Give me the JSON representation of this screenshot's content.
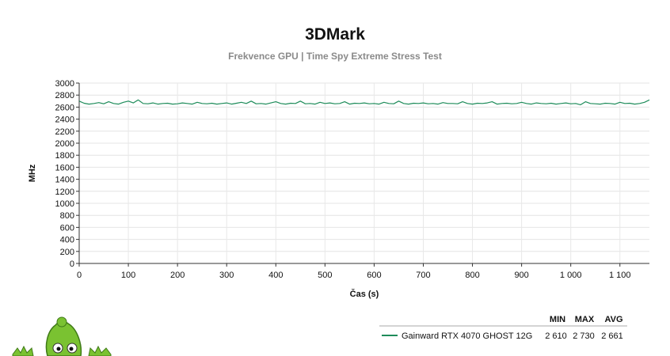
{
  "chart_data": {
    "type": "line",
    "title": "3DMark",
    "subtitle": "Frekvence GPU | Time Spy Extreme Stress Test",
    "xlabel": "Čas (s)",
    "ylabel": "MHz",
    "xlim": [
      0,
      1160
    ],
    "ylim": [
      0,
      3000
    ],
    "x_ticks": [
      0,
      100,
      200,
      300,
      400,
      500,
      600,
      700,
      800,
      900,
      1000,
      1100
    ],
    "x_tick_labels": [
      "0",
      "100",
      "200",
      "300",
      "400",
      "500",
      "600",
      "700",
      "800",
      "900",
      "1 000",
      "1 100"
    ],
    "y_ticks": [
      0,
      200,
      400,
      600,
      800,
      1000,
      1200,
      1400,
      1600,
      1800,
      2000,
      2200,
      2400,
      2600,
      2800,
      3000
    ],
    "grid": true,
    "legend": {
      "columns": [
        "MIN",
        "MAX",
        "AVG"
      ],
      "placement": "bottom-right"
    },
    "series": [
      {
        "name": "Gainward RTX 4070 GHOST 12G",
        "color": "#1e8c5a",
        "min": "2 610",
        "max": "2 730",
        "avg": "2 661",
        "x": [
          0,
          10,
          20,
          30,
          40,
          50,
          60,
          70,
          80,
          90,
          100,
          110,
          120,
          130,
          140,
          150,
          160,
          170,
          180,
          190,
          200,
          210,
          220,
          230,
          240,
          250,
          260,
          270,
          280,
          290,
          300,
          310,
          320,
          330,
          340,
          350,
          360,
          370,
          380,
          390,
          400,
          410,
          420,
          430,
          440,
          450,
          460,
          470,
          480,
          490,
          500,
          510,
          520,
          530,
          540,
          550,
          560,
          570,
          580,
          590,
          600,
          610,
          620,
          630,
          640,
          650,
          660,
          670,
          680,
          690,
          700,
          710,
          720,
          730,
          740,
          750,
          760,
          770,
          780,
          790,
          800,
          810,
          820,
          830,
          840,
          850,
          860,
          870,
          880,
          890,
          900,
          910,
          920,
          930,
          940,
          950,
          960,
          970,
          980,
          990,
          1000,
          1010,
          1020,
          1030,
          1040,
          1050,
          1060,
          1070,
          1080,
          1090,
          1100,
          1110,
          1120,
          1130,
          1140,
          1150,
          1160
        ],
        "values": [
          2700,
          2665,
          2650,
          2660,
          2675,
          2655,
          2690,
          2660,
          2650,
          2680,
          2700,
          2670,
          2720,
          2660,
          2655,
          2670,
          2650,
          2660,
          2665,
          2650,
          2655,
          2670,
          2660,
          2650,
          2680,
          2660,
          2655,
          2665,
          2650,
          2660,
          2670,
          2650,
          2665,
          2680,
          2660,
          2700,
          2655,
          2660,
          2650,
          2670,
          2690,
          2660,
          2650,
          2665,
          2660,
          2700,
          2655,
          2660,
          2650,
          2680,
          2660,
          2670,
          2655,
          2660,
          2690,
          2650,
          2665,
          2660,
          2670,
          2655,
          2660,
          2650,
          2680,
          2660,
          2655,
          2700,
          2660,
          2650,
          2665,
          2660,
          2670,
          2655,
          2660,
          2650,
          2675,
          2660,
          2660,
          2655,
          2690,
          2660,
          2650,
          2665,
          2660,
          2670,
          2690,
          2650,
          2660,
          2665,
          2655,
          2660,
          2680,
          2660,
          2650,
          2670,
          2660,
          2655,
          2665,
          2650,
          2660,
          2670,
          2655,
          2660,
          2640,
          2690,
          2660,
          2655,
          2650,
          2665,
          2660,
          2650,
          2680,
          2660,
          2665,
          2650,
          2660,
          2680,
          2720
        ]
      }
    ]
  },
  "mascot": {
    "icon": "green-mascot-icon",
    "body_color": "#7ac231",
    "outline_color": "#3f7a17"
  }
}
